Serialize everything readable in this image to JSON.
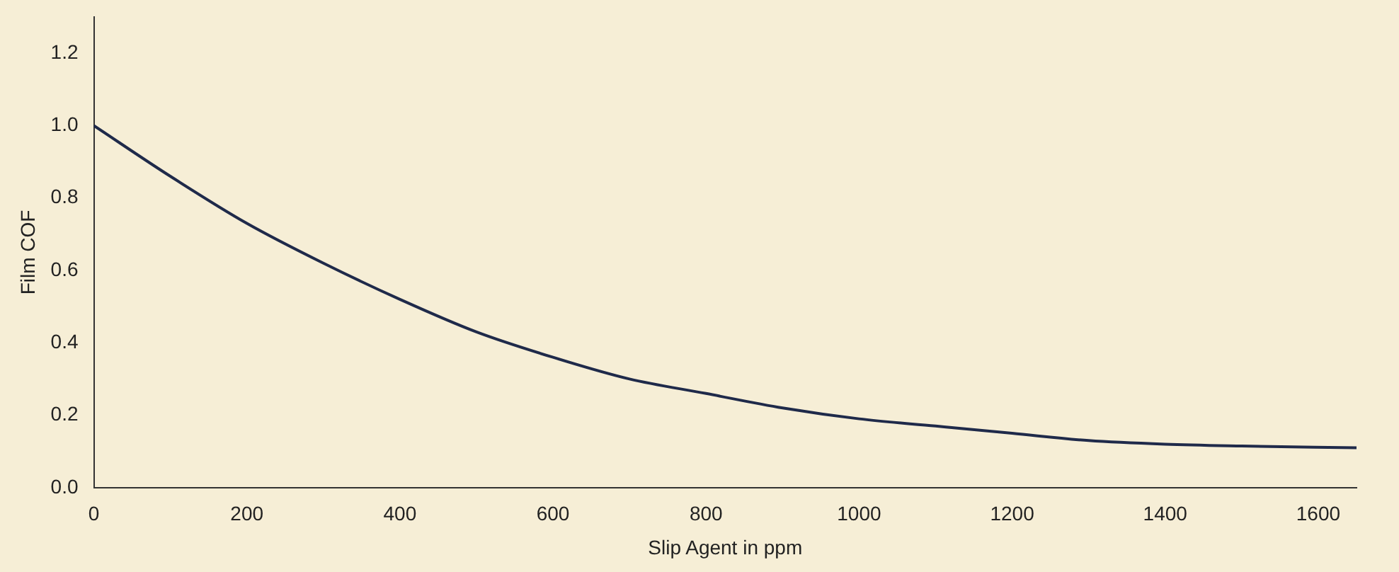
{
  "chart_data": {
    "type": "line",
    "xlabel": "Slip Agent in ppm",
    "ylabel": "Film COF",
    "x": [
      0,
      100,
      200,
      300,
      400,
      500,
      600,
      700,
      800,
      900,
      1000,
      1100,
      1200,
      1300,
      1400,
      1500,
      1650
    ],
    "series": [
      {
        "color": "#1f2a4a",
        "values": [
          1.0,
          0.86,
          0.73,
          0.62,
          0.52,
          0.43,
          0.36,
          0.3,
          0.26,
          0.22,
          0.19,
          0.17,
          0.15,
          0.13,
          0.12,
          0.115,
          0.11
        ]
      }
    ],
    "xlim": [
      0,
      1650
    ],
    "xticks": [
      0,
      200,
      400,
      600,
      800,
      1000,
      1200,
      1400,
      1600
    ],
    "ylim": [
      0,
      1.3
    ],
    "yticks": [
      {
        "value": 0,
        "label": "0.0"
      },
      0.2,
      0.4,
      0.6,
      0.8,
      {
        "value": 1,
        "label": "1.0"
      },
      1.2
    ],
    "grid": false,
    "legend": false,
    "marker": "none",
    "line_style": "solid"
  }
}
